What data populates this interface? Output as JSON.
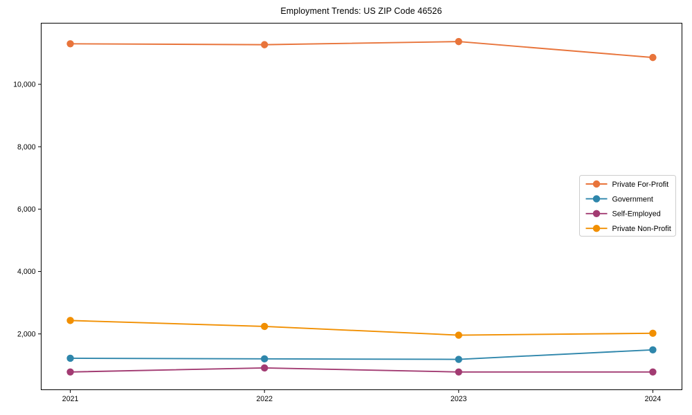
{
  "chart_data": {
    "type": "line",
    "title": "Employment Trends: US ZIP Code 46526",
    "xlabel": "",
    "ylabel": "",
    "x": [
      2021,
      2022,
      2023,
      2024
    ],
    "x_tick_labels": [
      "2021",
      "2022",
      "2023",
      "2024"
    ],
    "y_ticks": [
      2000,
      4000,
      6000,
      8000,
      10000
    ],
    "y_tick_labels": [
      "2,000",
      "4,000",
      "6,000",
      "8,000",
      "10,000"
    ],
    "xlim": [
      2020.85,
      2024.15
    ],
    "ylim": [
      210,
      11960
    ],
    "grid": false,
    "legend_position": "center-right",
    "marker": "circle",
    "series": [
      {
        "name": "Private For-Profit",
        "color": "#E8743B",
        "values": [
          11300,
          11270,
          11370,
          10860
        ]
      },
      {
        "name": "Government",
        "color": "#2E86AB",
        "values": [
          1220,
          1200,
          1185,
          1490
        ]
      },
      {
        "name": "Self-Employed",
        "color": "#A23B72",
        "values": [
          780,
          910,
          780,
          780
        ]
      },
      {
        "name": "Private Non-Profit",
        "color": "#F18F01",
        "values": [
          2430,
          2240,
          1960,
          2020
        ]
      }
    ],
    "frame_color": "#000000",
    "background_color": "#ffffff"
  }
}
